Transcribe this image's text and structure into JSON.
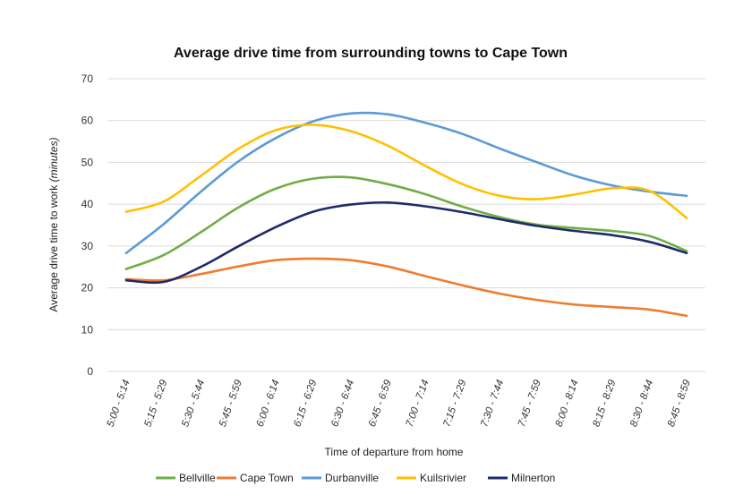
{
  "chart_data": {
    "type": "line",
    "title": "Average drive time from surrounding towns to Cape Town",
    "xlabel": "Time of departure from home",
    "ylabel_main": "Average drive time to work ",
    "ylabel_unit": "(minutes)",
    "ylim": [
      0,
      70
    ],
    "yticks": [
      0,
      10,
      20,
      30,
      40,
      50,
      60,
      70
    ],
    "grid": true,
    "legend_position": "bottom",
    "categories": [
      "5:00 - 5:14",
      "5:15 - 5:29",
      "5:30 - 5:44",
      "5:45 - 5:59",
      "6:00 - 6:14",
      "6:15 - 6:29",
      "6:30 - 6:44",
      "6:45 - 6:59",
      "7:00 - 7:14",
      "7:15 - 7:29",
      "7:30 - 7:44",
      "7:45 - 7:59",
      "8:00 - 8:14",
      "8:15 - 8:29",
      "8:30 - 8:44",
      "8:45 - 8:59"
    ],
    "series": [
      {
        "name": "Bellville",
        "color": "#70ad47",
        "values": [
          24.5,
          27.8,
          33.3,
          39.2,
          43.7,
          46.1,
          46.4,
          44.8,
          42.4,
          39.4,
          36.9,
          35.1,
          34.3,
          33.6,
          32.4,
          28.8
        ]
      },
      {
        "name": "Cape Town",
        "color": "#ed7d31",
        "values": [
          22.1,
          21.8,
          23.3,
          25.1,
          26.6,
          27.0,
          26.6,
          25.1,
          22.8,
          20.6,
          18.6,
          17.1,
          16.0,
          15.4,
          14.8,
          13.3
        ]
      },
      {
        "name": "Durbanville",
        "color": "#5b9bd5",
        "values": [
          28.3,
          35.2,
          43.0,
          50.2,
          55.8,
          59.8,
          61.7,
          61.5,
          59.5,
          56.8,
          53.3,
          50.0,
          46.8,
          44.5,
          43.0,
          42.0
        ]
      },
      {
        "name": "Kuilsrivier",
        "color": "#ffc000",
        "values": [
          38.2,
          40.6,
          46.8,
          53.2,
          57.7,
          59.0,
          57.5,
          54.0,
          49.2,
          44.8,
          42.0,
          41.2,
          42.3,
          43.8,
          43.2,
          36.7
        ]
      },
      {
        "name": "Milnerton",
        "color": "#1f2a6b",
        "values": [
          21.8,
          21.4,
          25.0,
          29.9,
          34.5,
          38.2,
          39.9,
          40.4,
          39.5,
          38.1,
          36.4,
          34.8,
          33.6,
          32.6,
          31.0,
          28.3
        ]
      }
    ]
  }
}
